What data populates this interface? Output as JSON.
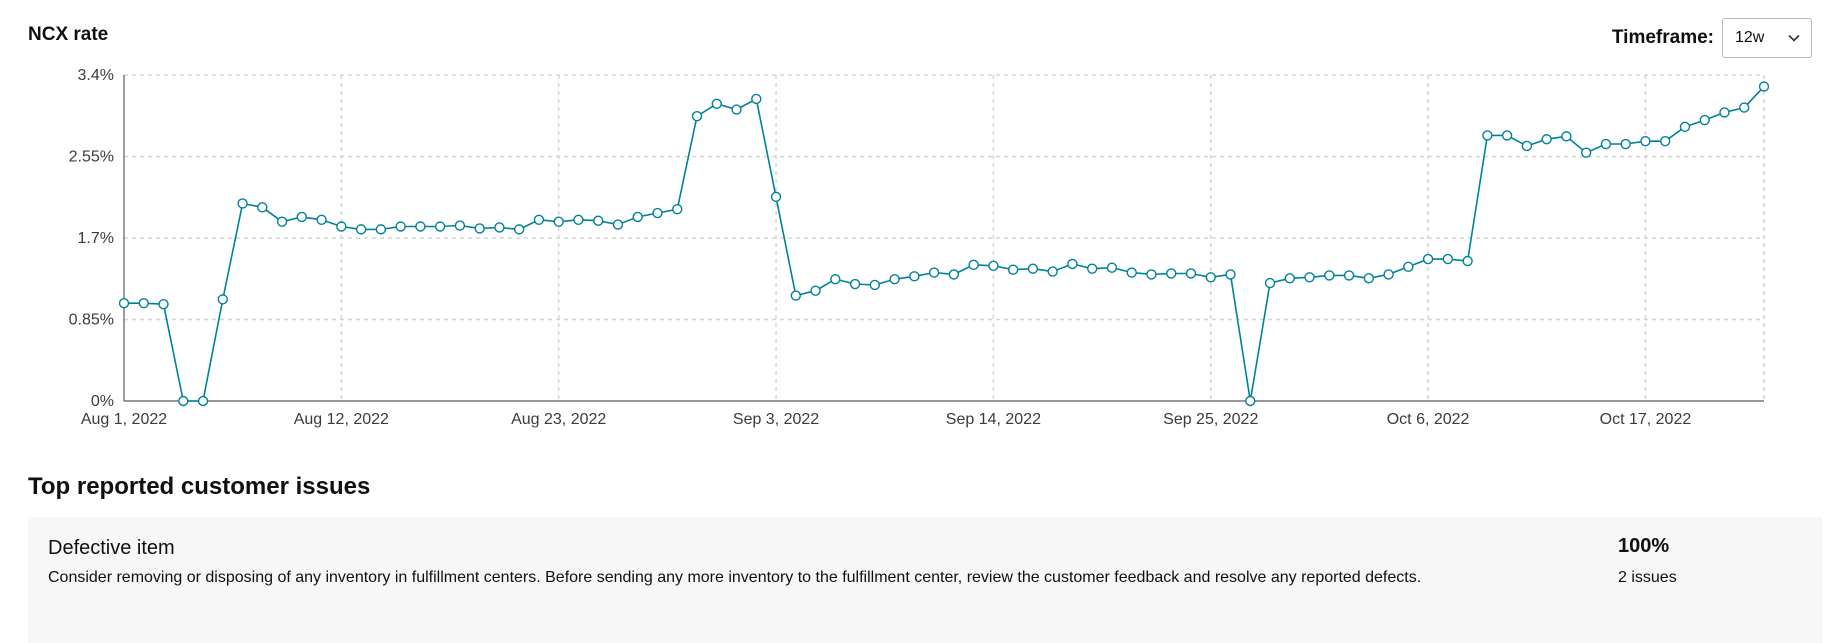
{
  "header": {
    "timeframe_label": "Timeframe:",
    "timeframe_value": "12w"
  },
  "chart_data": {
    "type": "line",
    "title": "NCX rate",
    "xlabel": "",
    "ylabel": "",
    "ylim": [
      0,
      3.4
    ],
    "yticks": [
      0,
      0.85,
      1.7,
      2.55,
      3.4
    ],
    "ytick_labels": [
      "0%",
      "0.85%",
      "1.7%",
      "2.55%",
      "3.4%"
    ],
    "x_start": "Aug 1, 2022",
    "x_end": "Oct 22, 2022",
    "xticks": [
      "Aug 1, 2022",
      "Aug 12, 2022",
      "Aug 23, 2022",
      "Sep 3, 2022",
      "Sep 14, 2022",
      "Sep 25, 2022",
      "Oct 6, 2022",
      "Oct 17, 2022"
    ],
    "grid": true,
    "legend": "none",
    "color": "#008296",
    "series": [
      {
        "values": [
          1.02,
          1.02,
          1.01,
          0,
          0,
          1.06,
          2.06,
          2.02,
          1.87,
          1.92,
          1.89,
          1.82,
          1.79,
          1.79,
          1.82,
          1.82,
          1.82,
          1.83,
          1.8,
          1.81,
          1.79,
          1.89,
          1.87,
          1.89,
          1.88,
          1.84,
          1.92,
          1.96,
          2.0,
          2.97,
          3.1,
          3.04,
          3.15,
          2.13,
          1.1,
          1.15,
          1.27,
          1.22,
          1.21,
          1.27,
          1.3,
          1.34,
          1.32,
          1.42,
          1.41,
          1.37,
          1.38,
          1.35,
          1.43,
          1.38,
          1.39,
          1.34,
          1.32,
          1.33,
          1.33,
          1.29,
          1.32,
          0,
          1.23,
          1.28,
          1.29,
          1.31,
          1.31,
          1.28,
          1.32,
          1.4,
          1.48,
          1.48,
          1.46,
          2.77,
          2.77,
          2.66,
          2.73,
          2.76,
          2.59,
          2.68,
          2.68,
          2.71,
          2.71,
          2.86,
          2.93,
          3.01,
          3.06,
          3.28
        ]
      }
    ]
  },
  "issues": {
    "title": "Top reported customer issues",
    "items": [
      {
        "name": "Defective item",
        "description": "Consider removing or disposing of any inventory in fulfillment centers. Before sending any more inventory to the fulfillment center, review the customer feedback and resolve any reported defects.",
        "percent": "100%",
        "count": "2 issues"
      }
    ]
  }
}
